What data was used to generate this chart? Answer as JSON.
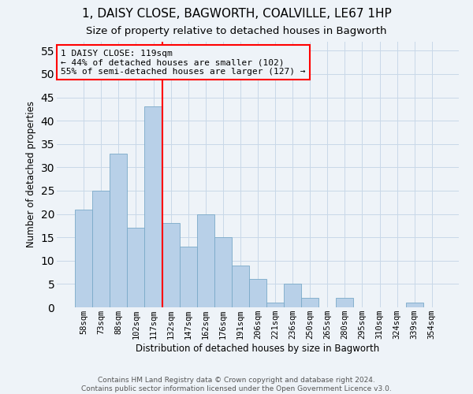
{
  "title": "1, DAISY CLOSE, BAGWORTH, COALVILLE, LE67 1HP",
  "subtitle": "Size of property relative to detached houses in Bagworth",
  "xlabel": "Distribution of detached houses by size in Bagworth",
  "ylabel": "Number of detached properties",
  "categories": [
    "58sqm",
    "73sqm",
    "88sqm",
    "102sqm",
    "117sqm",
    "132sqm",
    "147sqm",
    "162sqm",
    "176sqm",
    "191sqm",
    "206sqm",
    "221sqm",
    "236sqm",
    "250sqm",
    "265sqm",
    "280sqm",
    "295sqm",
    "310sqm",
    "324sqm",
    "339sqm",
    "354sqm"
  ],
  "values": [
    21,
    25,
    33,
    17,
    43,
    18,
    13,
    20,
    15,
    9,
    6,
    1,
    5,
    2,
    0,
    2,
    0,
    0,
    0,
    1,
    0
  ],
  "bar_color": "#b8d0e8",
  "bar_edge_color": "#7aaac8",
  "grid_color": "#c8d8e8",
  "background_color": "#eef3f8",
  "vline_x": 4.5,
  "vline_color": "red",
  "annotation_text": "1 DAISY CLOSE: 119sqm\n← 44% of detached houses are smaller (102)\n55% of semi-detached houses are larger (127) →",
  "annotation_box_color": "red",
  "ylim": [
    0,
    57
  ],
  "yticks": [
    0,
    5,
    10,
    15,
    20,
    25,
    30,
    35,
    40,
    45,
    50,
    55
  ],
  "footer_text": "Contains HM Land Registry data © Crown copyright and database right 2024.\nContains public sector information licensed under the Open Government Licence v3.0.",
  "title_fontsize": 11,
  "subtitle_fontsize": 9.5,
  "axis_label_fontsize": 8.5,
  "tick_fontsize": 7.5,
  "annotation_fontsize": 8,
  "footer_fontsize": 6.5
}
